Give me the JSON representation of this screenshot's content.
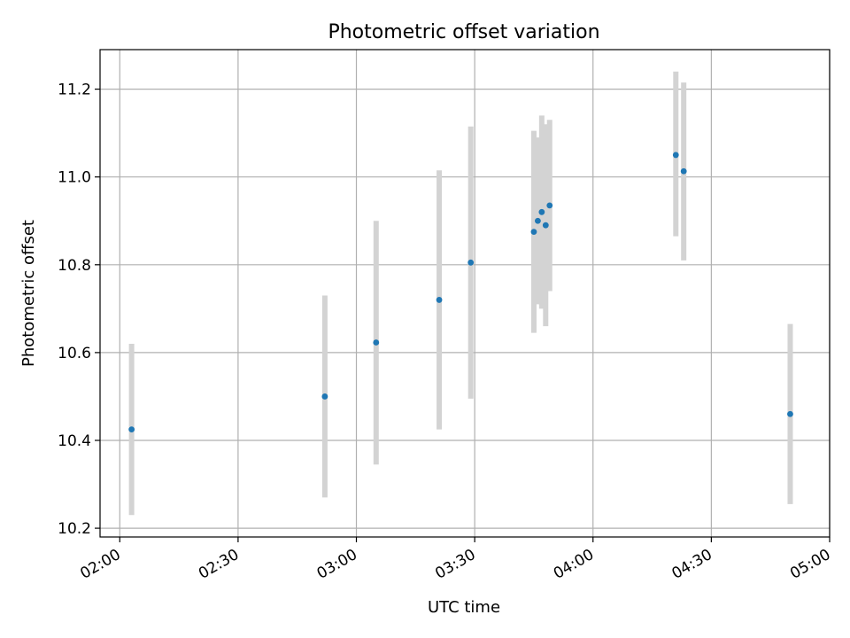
{
  "chart_data": {
    "type": "scatter",
    "title": "Photometric offset variation",
    "xlabel": "UTC time",
    "ylabel": "Photometric offset",
    "x_tick_labels": [
      "02:00",
      "02:30",
      "03:00",
      "03:30",
      "04:00",
      "04:30",
      "05:00"
    ],
    "y_tick_labels": [
      "10.2",
      "10.4",
      "10.6",
      "10.8",
      "11.0",
      "11.2"
    ],
    "xlim": [
      "01:55",
      "05:00"
    ],
    "ylim": [
      10.18,
      11.29
    ],
    "grid": true,
    "legend": "none",
    "colors": {
      "point": "#1f77b4",
      "errorbar": "#d3d3d3",
      "grid": "#b0b0b0"
    },
    "points": [
      {
        "x": "02:03",
        "y": 10.425,
        "yerr_low": 10.23,
        "yerr_high": 10.62
      },
      {
        "x": "02:52",
        "y": 10.5,
        "yerr_low": 10.27,
        "yerr_high": 10.73
      },
      {
        "x": "03:05",
        "y": 10.623,
        "yerr_low": 10.345,
        "yerr_high": 10.9
      },
      {
        "x": "03:21",
        "y": 10.72,
        "yerr_low": 10.425,
        "yerr_high": 11.015
      },
      {
        "x": "03:29",
        "y": 10.805,
        "yerr_low": 10.495,
        "yerr_high": 11.115
      },
      {
        "x": "03:45",
        "y": 10.875,
        "yerr_low": 10.645,
        "yerr_high": 11.105
      },
      {
        "x": "03:46",
        "y": 10.9,
        "yerr_low": 10.71,
        "yerr_high": 11.09
      },
      {
        "x": "03:47",
        "y": 10.92,
        "yerr_low": 10.7,
        "yerr_high": 11.14
      },
      {
        "x": "03:48",
        "y": 10.89,
        "yerr_low": 10.66,
        "yerr_high": 11.12
      },
      {
        "x": "03:49",
        "y": 10.935,
        "yerr_low": 10.74,
        "yerr_high": 11.13
      },
      {
        "x": "04:21",
        "y": 11.05,
        "yerr_low": 10.865,
        "yerr_high": 11.24
      },
      {
        "x": "04:23",
        "y": 11.013,
        "yerr_low": 10.81,
        "yerr_high": 11.215
      },
      {
        "x": "04:50",
        "y": 10.46,
        "yerr_low": 10.255,
        "yerr_high": 10.665
      }
    ]
  }
}
